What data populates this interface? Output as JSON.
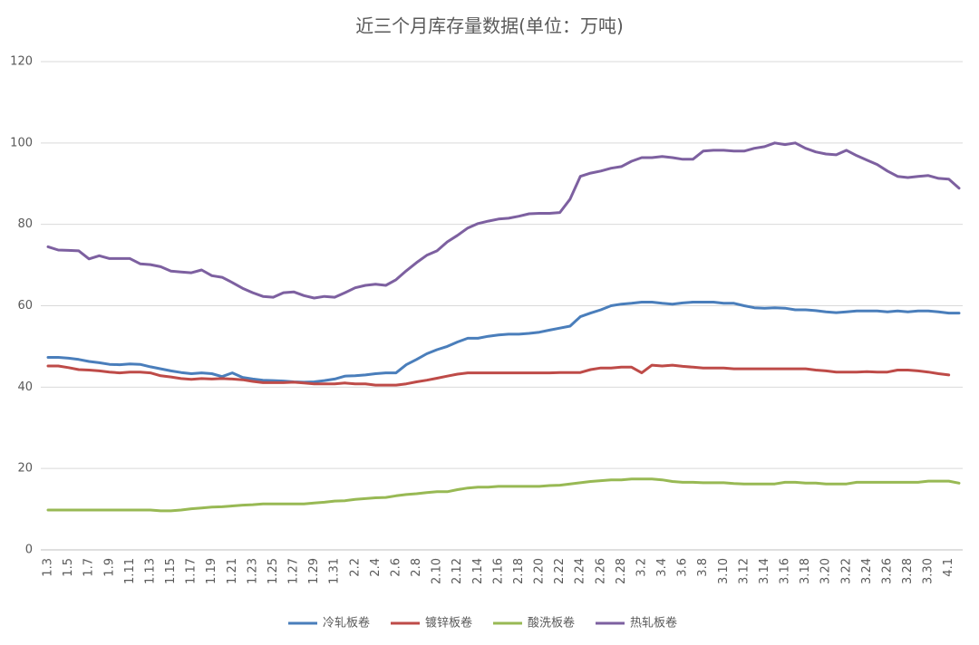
{
  "chart_data": {
    "type": "line",
    "title": "近三个月库存量数据(单位：万吨)",
    "categories": [
      "1.3",
      null,
      "1.5",
      null,
      "1.7",
      null,
      "1.9",
      null,
      "1.11",
      null,
      "1.13",
      null,
      "1.15",
      null,
      "1.17",
      null,
      "1.19",
      null,
      "1.21",
      null,
      "1.23",
      null,
      "1.25",
      null,
      "1.27",
      null,
      "1.29",
      null,
      "1.31",
      null,
      "2.2",
      null,
      "2.4",
      null,
      "2.6",
      null,
      "2.8",
      null,
      "2.10",
      null,
      "2.12",
      null,
      "2.14",
      null,
      "2.16",
      null,
      "2.18",
      null,
      "2.20",
      null,
      "2.22",
      null,
      "2.24",
      null,
      "2.26",
      null,
      "2.28",
      null,
      "3.2",
      null,
      "3.4",
      null,
      "3.6",
      null,
      "3.8",
      null,
      "3.10",
      null,
      "3.12",
      null,
      "3.14",
      null,
      "3.16",
      null,
      "3.18",
      null,
      "3.20",
      null,
      "3.22",
      null,
      "3.24",
      null,
      "3.26",
      null,
      "3.28",
      null,
      "3.30",
      null,
      "4.1",
      null
    ],
    "series": [
      {
        "name": "冷轧板卷",
        "color": "#4a7ebb",
        "values": [
          47.3,
          47.3,
          47.1,
          46.8,
          46.3,
          46.0,
          45.6,
          45.5,
          45.7,
          45.6,
          45.0,
          44.5,
          44.0,
          43.6,
          43.3,
          43.5,
          43.3,
          42.6,
          43.5,
          42.4,
          42.0,
          41.7,
          41.6,
          41.5,
          41.3,
          41.2,
          41.3,
          41.6,
          42.0,
          42.7,
          42.8,
          43.0,
          43.3,
          43.5,
          43.5,
          45.5,
          46.8,
          48.2,
          49.2,
          50.0,
          51.1,
          52.0,
          52.0,
          52.5,
          52.8,
          53.0,
          53.0,
          53.2,
          53.5,
          54.0,
          54.5,
          55.0,
          57.3,
          58.2,
          59.0,
          60.0,
          60.4,
          60.6,
          60.9,
          60.9,
          60.6,
          60.4,
          60.7,
          60.9,
          60.9,
          60.9,
          60.6,
          60.6,
          60.0,
          59.5,
          59.4,
          59.5,
          59.4,
          59.0,
          59.0,
          58.8,
          58.5,
          58.3,
          58.5,
          58.7,
          58.7,
          58.7,
          58.5,
          58.7,
          58.5,
          58.7,
          58.7,
          58.5,
          58.2,
          58.2
        ]
      },
      {
        "name": "镀锌板卷",
        "color": "#be4b48",
        "values": [
          45.2,
          45.2,
          44.8,
          44.3,
          44.2,
          44.0,
          43.7,
          43.5,
          43.7,
          43.7,
          43.5,
          42.8,
          42.5,
          42.1,
          41.9,
          42.1,
          42.0,
          42.1,
          42.0,
          41.8,
          41.4,
          41.1,
          41.1,
          41.1,
          41.2,
          41.0,
          40.8,
          40.8,
          40.8,
          41.0,
          40.8,
          40.8,
          40.5,
          40.5,
          40.5,
          40.8,
          41.3,
          41.7,
          42.2,
          42.7,
          43.2,
          43.5,
          43.5,
          43.5,
          43.5,
          43.5,
          43.5,
          43.5,
          43.5,
          43.5,
          43.6,
          43.6,
          43.6,
          44.3,
          44.7,
          44.7,
          44.9,
          44.9,
          43.5,
          45.4,
          45.2,
          45.4,
          45.1,
          44.9,
          44.7,
          44.7,
          44.7,
          44.5,
          44.5,
          44.5,
          44.5,
          44.5,
          44.5,
          44.5,
          44.5,
          44.2,
          44.0,
          43.7,
          43.7,
          43.7,
          43.8,
          43.7,
          43.7,
          44.2,
          44.2,
          44.0,
          43.7,
          43.3,
          43.0,
          null
        ]
      },
      {
        "name": "酸洗板卷",
        "color": "#98b954",
        "values": [
          9.8,
          9.8,
          9.8,
          9.8,
          9.8,
          9.8,
          9.8,
          9.8,
          9.8,
          9.8,
          9.8,
          9.6,
          9.6,
          9.8,
          10.1,
          10.3,
          10.5,
          10.6,
          10.8,
          11.0,
          11.1,
          11.3,
          11.3,
          11.3,
          11.3,
          11.3,
          11.5,
          11.7,
          12.0,
          12.1,
          12.4,
          12.6,
          12.8,
          12.9,
          13.3,
          13.6,
          13.8,
          14.1,
          14.3,
          14.3,
          14.8,
          15.2,
          15.4,
          15.4,
          15.6,
          15.6,
          15.6,
          15.6,
          15.6,
          15.8,
          15.9,
          16.2,
          16.5,
          16.8,
          17.0,
          17.2,
          17.2,
          17.4,
          17.4,
          17.4,
          17.2,
          16.8,
          16.6,
          16.6,
          16.5,
          16.5,
          16.5,
          16.3,
          16.2,
          16.2,
          16.2,
          16.2,
          16.6,
          16.6,
          16.4,
          16.4,
          16.2,
          16.2,
          16.2,
          16.6,
          16.6,
          16.6,
          16.6,
          16.6,
          16.6,
          16.6,
          16.9,
          16.9,
          16.9,
          16.4
        ]
      },
      {
        "name": "热轧板卷",
        "color": "#7d60a0",
        "values": [
          74.5,
          73.7,
          73.6,
          73.5,
          71.5,
          72.3,
          71.6,
          71.6,
          71.6,
          70.3,
          70.1,
          69.6,
          68.5,
          68.3,
          68.1,
          68.8,
          67.4,
          67.0,
          65.7,
          64.3,
          63.2,
          62.3,
          62.1,
          63.2,
          63.4,
          62.5,
          61.9,
          62.3,
          62.1,
          63.2,
          64.4,
          65.0,
          65.3,
          65.0,
          66.4,
          68.6,
          70.6,
          72.4,
          73.5,
          75.7,
          77.3,
          79.1,
          80.2,
          80.8,
          81.3,
          81.5,
          82.0,
          82.6,
          82.7,
          82.7,
          82.9,
          86.2,
          91.8,
          92.6,
          93.1,
          93.8,
          94.2,
          95.5,
          96.4,
          96.4,
          96.7,
          96.4,
          96.0,
          96.0,
          98.0,
          98.2,
          98.2,
          98.0,
          98.0,
          98.7,
          99.1,
          100.0,
          99.6,
          100.0,
          98.7,
          97.8,
          97.3,
          97.1,
          98.2,
          96.9,
          95.8,
          94.7,
          93.1,
          91.8,
          91.5,
          91.8,
          92.0,
          91.3,
          91.1,
          88.9
        ]
      }
    ],
    "ylim": [
      0,
      120
    ],
    "yticks": [
      0,
      20,
      40,
      60,
      80,
      100,
      120
    ],
    "grid": true,
    "legend": "bottom"
  }
}
